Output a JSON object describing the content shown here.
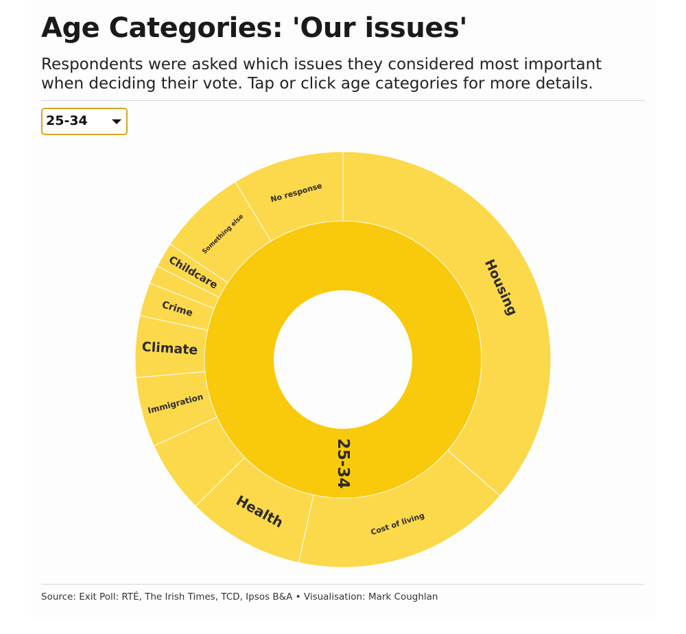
{
  "header": {
    "title": "Age Categories: 'Our issues'",
    "subtitle": "Respondents were asked which issues they considered most important when deciding their vote. Tap or click age categories for more details."
  },
  "age_select": {
    "selected": "25-34"
  },
  "chart_data": {
    "type": "sunburst",
    "center_label": "25-34",
    "colors": {
      "inner_ring": "#f9ca0c",
      "outer_ring": "#fcd84b",
      "separator": "#ffffff",
      "label": "#2b2b2b"
    },
    "segments": [
      {
        "label": "Housing",
        "percent": 33.5,
        "show_label": true
      },
      {
        "label": "",
        "percent": 0,
        "show_label": false
      },
      {
        "label": "Cost of living",
        "percent": 15.7,
        "show_label": true
      },
      {
        "label": "Health",
        "percent": 8.4,
        "show_label": true
      },
      {
        "label": "",
        "percent": 5.2,
        "show_label": false
      },
      {
        "label": "Immigration",
        "percent": 5.0,
        "show_label": true
      },
      {
        "label": "Climate",
        "percent": 4.4,
        "show_label": true
      },
      {
        "label": "Crime",
        "percent": 2.4,
        "show_label": true
      },
      {
        "label": "",
        "percent": 1.3,
        "show_label": false
      },
      {
        "label": "Childcare",
        "percent": 1.8,
        "show_label": true
      },
      {
        "label": "Something else",
        "percent": 6.4,
        "show_label": true
      },
      {
        "label": "No response",
        "percent": 8.0,
        "show_label": true
      }
    ]
  },
  "footer": {
    "source": "Source: Exit Poll: RTÉ, The Irish Times, TCD, Ipsos B&A • Visualisation: Mark Coughlan"
  }
}
